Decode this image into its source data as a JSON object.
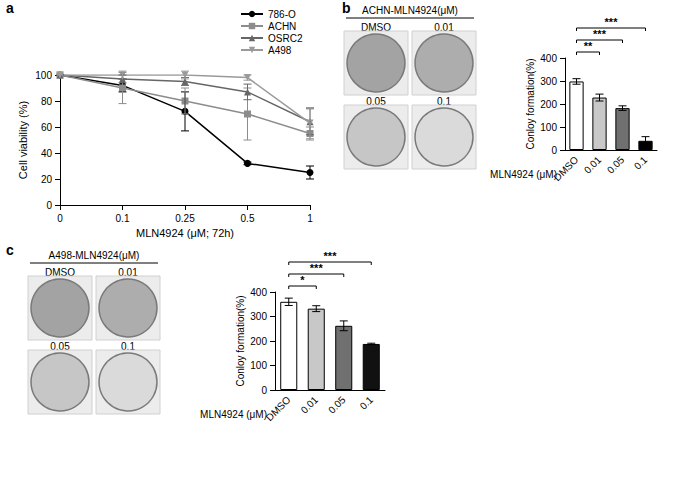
{
  "chart_data": [
    {
      "panel": "a",
      "type": "line",
      "x_label": "MLN4924 (μM; 72h)",
      "y_label": "Cell viability (%)",
      "categories": [
        "0",
        "0.1",
        "0.25",
        "0.5",
        "1"
      ],
      "series": [
        {
          "name": "786-O",
          "color": "#000000",
          "marker": "circle",
          "values": [
            100,
            92,
            72,
            32,
            25
          ],
          "errors": [
            0,
            5,
            15,
            1,
            5
          ]
        },
        {
          "name": "ACHN",
          "color": "#8c8c8c",
          "marker": "square",
          "values": [
            100,
            90,
            80,
            70,
            55
          ],
          "errors": [
            0,
            12,
            10,
            20,
            5
          ]
        },
        {
          "name": "OSRC2",
          "color": "#666666",
          "marker": "triangle",
          "values": [
            100,
            97,
            95,
            87,
            64
          ],
          "errors": [
            0,
            3,
            3,
            6,
            10
          ]
        },
        {
          "name": "A498",
          "color": "#9a9a9a",
          "marker": "triangle_down",
          "values": [
            100,
            100,
            100,
            98,
            63
          ],
          "errors": [
            0,
            3,
            3,
            2,
            12
          ]
        }
      ],
      "ylim": [
        0,
        100
      ],
      "yticks": [
        0,
        20,
        40,
        60,
        80,
        100
      ],
      "grid": false,
      "legend": "upper right"
    },
    {
      "panel": "b",
      "type": "bar",
      "title": "ACHN-MLN4924(μM)",
      "plate_labels": [
        "DMSO",
        "0.01",
        "0.05",
        "0.1"
      ],
      "x_label": "MLN4924 (μM)",
      "y_label": "Conloy formation(%)",
      "categories": [
        "DMSO",
        "0.01",
        "0.05",
        "0.1"
      ],
      "values": [
        298,
        228,
        182,
        40
      ],
      "errors": [
        12,
        15,
        10,
        18
      ],
      "colors": [
        "#ffffff",
        "#c8c8c8",
        "#707070",
        "#000000"
      ],
      "ylim": [
        0,
        400
      ],
      "yticks": [
        0,
        100,
        200,
        300,
        400
      ],
      "grid": false,
      "significance": [
        {
          "from": "DMSO",
          "to": "0.01",
          "label": "**"
        },
        {
          "from": "DMSO",
          "to": "0.05",
          "label": "***"
        },
        {
          "from": "DMSO",
          "to": "0.1",
          "label": "***"
        }
      ]
    },
    {
      "panel": "c",
      "type": "bar",
      "title": "A498-MLN4924(μM)",
      "plate_labels": [
        "DMSO",
        "0.01",
        "0.05",
        "0.1"
      ],
      "x_label": "MLN4924 (μM)",
      "y_label": "Conloy formation(%)",
      "categories": [
        "DMSO",
        "0.01",
        "0.05",
        "0.1"
      ],
      "values": [
        360,
        332,
        262,
        188
      ],
      "errors": [
        15,
        12,
        20,
        3
      ],
      "colors": [
        "#ffffff",
        "#c8c8c8",
        "#707070",
        "#111111"
      ],
      "ylim": [
        0,
        400
      ],
      "yticks": [
        0,
        100,
        200,
        300,
        400
      ],
      "grid": false,
      "significance": [
        {
          "from": "DMSO",
          "to": "0.01",
          "label": "*"
        },
        {
          "from": "DMSO",
          "to": "0.05",
          "label": "***"
        },
        {
          "from": "DMSO",
          "to": "0.1",
          "label": "***"
        }
      ]
    }
  ]
}
